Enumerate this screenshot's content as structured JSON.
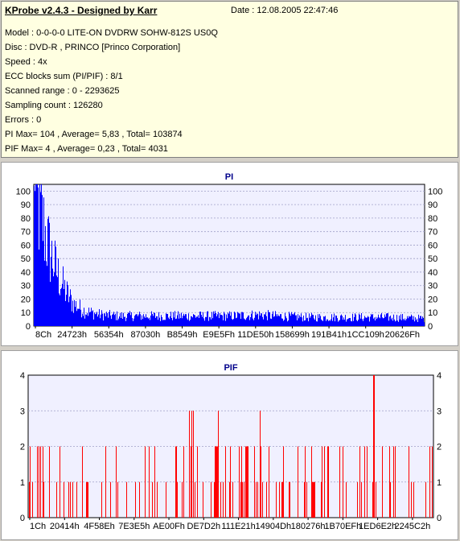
{
  "header": {
    "title": "KProbe v2.4.3 - Designed by Karr",
    "date": "Date : 12.08.2005 22:47:46",
    "lines": [
      "Model : 0-0-0-0 LITE-ON DVDRW SOHW-812S  US0Q",
      "Disc : DVD-R , PRINCO [Princo Corporation]",
      "Speed : 4x",
      "ECC blocks sum (PI/PIF) : 8/1",
      "Scanned range : 0 - 2293625",
      "Sampling count : 126280",
      "Errors : 0",
      "PI Max= 104 , Average= 5,83 , Total= 103874",
      "PIF Max= 4 , Average= 0,23 , Total= 4031"
    ]
  },
  "chart_data": [
    {
      "type": "bar",
      "title": "PI",
      "color": "#0000ff",
      "ylim": [
        0,
        105
      ],
      "yticks": [
        0,
        10,
        20,
        30,
        40,
        50,
        60,
        70,
        80,
        90,
        100
      ],
      "xticks": [
        "8Ch",
        "24723h",
        "56354h",
        "87030h",
        "B8549h",
        "E9E5Fh",
        "11DE50h",
        "158699h",
        "191B41h",
        "1CC109h",
        "20626Fh"
      ],
      "xrange": [
        0,
        2293625
      ],
      "max": 104,
      "average": 5.83,
      "profile": [
        [
          0,
          104
        ],
        [
          0.02,
          85
        ],
        [
          0.04,
          60
        ],
        [
          0.06,
          42
        ],
        [
          0.08,
          28
        ],
        [
          0.1,
          18
        ],
        [
          0.13,
          12
        ],
        [
          0.17,
          9
        ],
        [
          0.22,
          8
        ],
        [
          0.3,
          8
        ],
        [
          0.4,
          8
        ],
        [
          0.5,
          8
        ],
        [
          0.58,
          9
        ],
        [
          0.62,
          8
        ],
        [
          0.7,
          7
        ],
        [
          0.8,
          7
        ],
        [
          0.9,
          7
        ],
        [
          1.0,
          6
        ]
      ]
    },
    {
      "type": "bar",
      "title": "PIF",
      "color": "#ff0000",
      "ylim": [
        0,
        4
      ],
      "yticks": [
        0,
        1,
        2,
        3,
        4
      ],
      "xticks": [
        "1Ch",
        "20414h",
        "4F58Eh",
        "7E3E5h",
        "AE00Fh",
        "DE7D2h",
        "111E21h",
        "14904Dh",
        "180276h",
        "1B70EFh",
        "1ED6E2h",
        "2245C2h"
      ],
      "xrange": [
        0,
        2293625
      ],
      "max": 4,
      "average": 0.23
    }
  ]
}
